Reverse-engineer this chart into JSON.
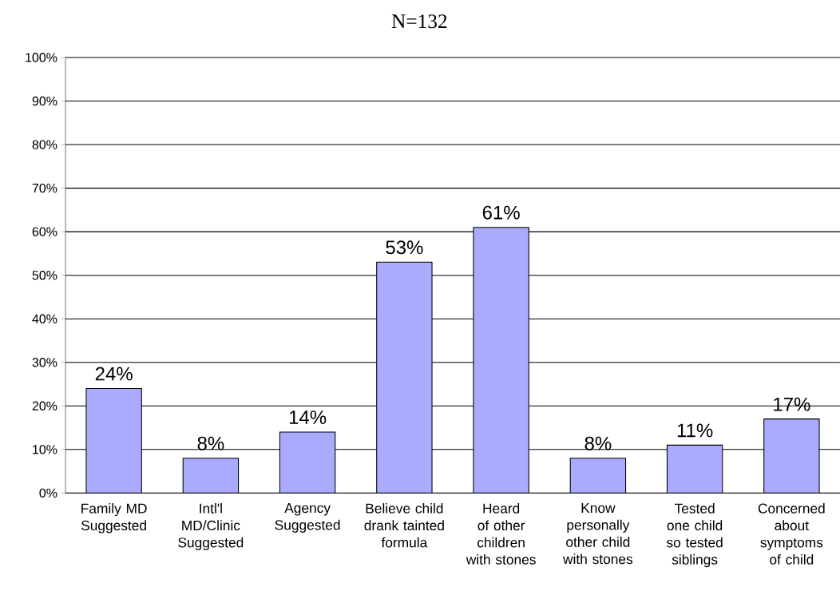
{
  "chart_data": {
    "type": "bar",
    "title": "N=132",
    "categories": [
      "Family MD Suggested",
      "Intl'l MD/Clinic Suggested",
      "Agency Suggested",
      "Believe child drank tainted formula",
      "Heard of other children with stones",
      "Know personally other child with stones",
      "Tested one child so tested siblings",
      "Concerned about symptoms of child"
    ],
    "values": [
      24,
      8,
      14,
      53,
      61,
      8,
      11,
      17
    ],
    "value_labels": [
      "24%",
      "8%",
      "14%",
      "53%",
      "61%",
      "8%",
      "11%",
      "17%"
    ],
    "color": "#aaaaff",
    "ylim": [
      0,
      100
    ],
    "yticks": [
      {
        "value": 0,
        "label": "0%"
      },
      {
        "value": 10,
        "label": "10%"
      },
      {
        "value": 20,
        "label": "20%"
      },
      {
        "value": 30,
        "label": "30%"
      },
      {
        "value": 40,
        "label": "40%"
      },
      {
        "value": 50,
        "label": "50%"
      },
      {
        "value": 60,
        "label": "60%"
      },
      {
        "value": 70,
        "label": "70%"
      },
      {
        "value": 80,
        "label": "80%"
      },
      {
        "value": 90,
        "label": "90%"
      },
      {
        "value": 100,
        "label": "100%"
      }
    ],
    "grid": "y"
  }
}
